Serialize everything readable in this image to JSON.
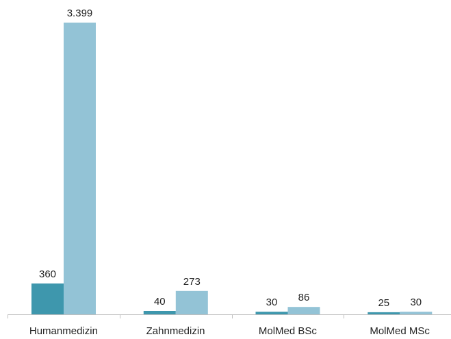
{
  "chart_data": {
    "type": "bar",
    "categories": [
      "Humanmedizin",
      "Zahnmedizin",
      "MolMed BSc",
      "MolMed MSc"
    ],
    "series": [
      {
        "values": [
          360,
          40,
          30,
          25
        ],
        "labels": [
          "360",
          "40",
          "30",
          "25"
        ],
        "color": "#3e97ad"
      },
      {
        "values": [
          3399,
          273,
          86,
          30
        ],
        "labels": [
          "3.399",
          "273",
          "86",
          "30"
        ],
        "color": "#93c3d6"
      }
    ],
    "ylim": [
      0,
      3399
    ],
    "grid": false,
    "axis_color": "#bfbfbf"
  }
}
